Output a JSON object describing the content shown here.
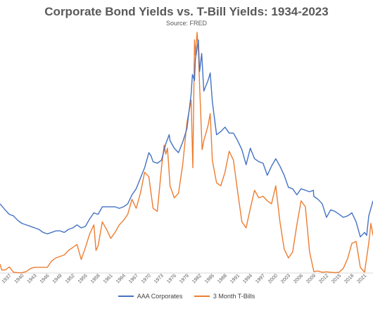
{
  "chart_data": {
    "type": "line",
    "title": "Corporate Bond Yields vs. T-Bill Yields: 1934-2023",
    "subtitle": "Source: FRED",
    "xlabel": "",
    "ylabel": "",
    "xlim": [
      1934.8,
      2023
    ],
    "ylim": [
      0,
      16
    ],
    "tick_labels": [
      "1937",
      "1940",
      "1943",
      "1946",
      "1949",
      "1952",
      "1955",
      "1958",
      "1961",
      "1964",
      "1967",
      "1970",
      "1973",
      "1976",
      "1979",
      "1982",
      "1985",
      "1988",
      "1991",
      "1994",
      "1997",
      "2000",
      "2003",
      "2006",
      "2009",
      "2012",
      "2015",
      "2018",
      "2021"
    ],
    "legend_position": "bottom",
    "series": [
      {
        "name": "AAA Corporates",
        "color": "#4472c4",
        "x": [
          1934.8,
          1936,
          1937,
          1938,
          1939,
          1940,
          1941,
          1942,
          1943,
          1944,
          1945,
          1946,
          1947,
          1948,
          1949,
          1950,
          1951,
          1952,
          1953,
          1954,
          1955,
          1956,
          1957,
          1958,
          1959,
          1960,
          1961,
          1962,
          1963,
          1964,
          1965,
          1966,
          1967,
          1968,
          1969,
          1970,
          1970.5,
          1971,
          1972,
          1973,
          1974,
          1974.8,
          1975,
          1976,
          1977,
          1978,
          1979,
          1980,
          1980.3,
          1980.8,
          1981,
          1981.7,
          1982,
          1982.5,
          1983,
          1984,
          1984.5,
          1985,
          1986,
          1987,
          1988,
          1989,
          1990,
          1991,
          1992,
          1993,
          1994,
          1995,
          1996,
          1997,
          1998,
          1999,
          2000,
          2001,
          2002,
          2003,
          2004,
          2005,
          2006,
          2007,
          2008,
          2008.9,
          2009,
          2010,
          2011,
          2012,
          2013,
          2014,
          2015,
          2016,
          2017,
          2018,
          2019,
          2020,
          2021,
          2021.5,
          2022,
          2023
        ],
        "y": [
          4.6,
          4.2,
          3.9,
          3.8,
          3.5,
          3.3,
          3.2,
          3.1,
          3.0,
          2.9,
          2.7,
          2.6,
          2.7,
          2.8,
          2.8,
          2.7,
          2.9,
          3.0,
          3.2,
          3.0,
          3.1,
          3.6,
          4.0,
          3.9,
          4.4,
          4.4,
          4.4,
          4.4,
          4.3,
          4.4,
          4.6,
          5.2,
          5.6,
          6.3,
          7.0,
          8.0,
          7.8,
          7.4,
          7.3,
          7.5,
          8.6,
          9.2,
          8.8,
          8.3,
          8.0,
          8.7,
          9.6,
          11.9,
          13.2,
          12.8,
          14.2,
          15.5,
          13.4,
          14.6,
          12.1,
          12.8,
          13.3,
          11.4,
          9.2,
          9.4,
          9.7,
          9.3,
          9.3,
          8.8,
          8.2,
          7.2,
          8.3,
          7.6,
          7.4,
          7.3,
          6.5,
          7.1,
          7.6,
          7.1,
          6.5,
          5.7,
          5.6,
          5.2,
          5.6,
          5.5,
          5.4,
          5.5,
          5.1,
          4.9,
          4.6,
          3.7,
          4.2,
          4.1,
          3.9,
          3.7,
          3.8,
          4.0,
          3.4,
          2.4,
          2.7,
          2.5,
          3.8,
          4.8
        ]
      },
      {
        "name": "3 Month T-Bills",
        "color": "#ed7d31",
        "x": [
          1934.8,
          1935.2,
          1936,
          1937,
          1938,
          1939,
          1940,
          1941,
          1942,
          1943,
          1944,
          1945,
          1946,
          1947,
          1948,
          1949,
          1950,
          1951,
          1952,
          1953,
          1953.9,
          1954,
          1955,
          1956,
          1957,
          1957.5,
          1958,
          1959,
          1960,
          1961,
          1962,
          1963,
          1964,
          1965,
          1966,
          1967,
          1968,
          1969,
          1970,
          1971,
          1972,
          1973,
          1973.6,
          1974,
          1974.4,
          1975,
          1976,
          1977,
          1978,
          1979,
          1980,
          1980.4,
          1980.8,
          1981,
          1981.4,
          1981.7,
          1982,
          1982.6,
          1983,
          1984,
          1984.5,
          1985,
          1986,
          1987,
          1988,
          1989,
          1990,
          1991,
          1992,
          1993,
          1994,
          1995,
          1996,
          1997,
          1998,
          1999,
          2000,
          2001,
          2002,
          2003,
          2004,
          2005,
          2006,
          2007,
          2008,
          2009,
          2010,
          2011,
          2012,
          2013,
          2014,
          2015,
          2016,
          2017,
          2018,
          2019,
          2020,
          2021,
          2022,
          2022.5,
          2023
        ],
        "y": [
          0.6,
          0.2,
          0.2,
          0.4,
          0.05,
          0.02,
          0.02,
          0.1,
          0.3,
          0.38,
          0.38,
          0.38,
          0.38,
          0.8,
          1.0,
          1.1,
          1.2,
          1.5,
          1.7,
          1.9,
          1.0,
          0.9,
          1.7,
          2.6,
          3.2,
          1.5,
          1.8,
          3.4,
          2.9,
          2.3,
          2.7,
          3.2,
          3.5,
          3.9,
          4.9,
          4.3,
          5.3,
          6.7,
          6.4,
          4.3,
          4.1,
          7.0,
          8.5,
          7.9,
          8.3,
          5.8,
          5.0,
          5.3,
          7.2,
          10.0,
          11.5,
          7.0,
          15.5,
          14.5,
          16.0,
          14.9,
          12.5,
          8.2,
          8.8,
          9.8,
          10.6,
          7.5,
          6.0,
          5.8,
          6.7,
          8.1,
          7.5,
          5.4,
          3.4,
          3.0,
          4.3,
          5.5,
          5.0,
          5.1,
          4.8,
          4.6,
          5.8,
          3.4,
          1.6,
          1.0,
          1.4,
          3.2,
          4.8,
          4.4,
          1.4,
          0.1,
          0.13,
          0.05,
          0.08,
          0.05,
          0.03,
          0.05,
          0.32,
          0.95,
          1.97,
          2.1,
          0.37,
          0.05,
          2.0,
          3.3,
          2.5
        ]
      }
    ]
  }
}
